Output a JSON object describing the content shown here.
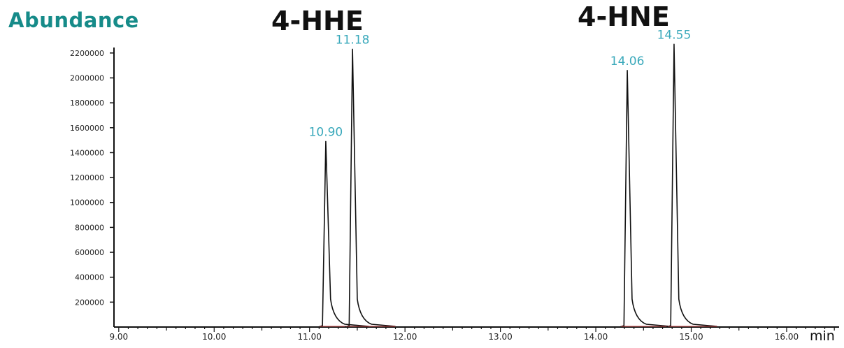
{
  "header": {
    "ylabel": "Abundance",
    "xunit": "min"
  },
  "compounds": [
    "4-HHE",
    "4-HNE"
  ],
  "colors": {
    "trace": "#111111",
    "axis": "#111111",
    "peak_label": "#3aa9bb",
    "ylabel": "#168b89",
    "baseline": "#c04040"
  },
  "chart_data": {
    "type": "line",
    "title": "",
    "xlabel": "min",
    "ylabel": "Abundance",
    "xlim": [
      8.95,
      16.55
    ],
    "ylim": [
      0,
      2300000
    ],
    "x_ticks": [
      9.0,
      10.0,
      11.0,
      12.0,
      13.0,
      14.0,
      15.0,
      16.0
    ],
    "x_tick_labels": [
      "9.00",
      "10.00",
      "11.00",
      "12.00",
      "13.00",
      "14.00",
      "15.00",
      "16.00"
    ],
    "y_ticks": [
      200000,
      400000,
      600000,
      800000,
      1000000,
      1200000,
      1400000,
      1600000,
      1800000,
      2000000,
      2200000
    ],
    "y_tick_labels": [
      "200000",
      "400000",
      "600000",
      "800000",
      "1000000",
      "1200000",
      "1400000",
      "1600000",
      "1800000",
      "2000000",
      "2200000"
    ],
    "grid": false,
    "peaks": [
      {
        "label": "10.90",
        "x": 11.17,
        "y": 1490000
      },
      {
        "label": "11.18",
        "x": 11.45,
        "y": 2230000
      },
      {
        "label": "14.06",
        "x": 14.33,
        "y": 2060000
      },
      {
        "label": "14.55",
        "x": 14.82,
        "y": 2270000
      }
    ]
  }
}
